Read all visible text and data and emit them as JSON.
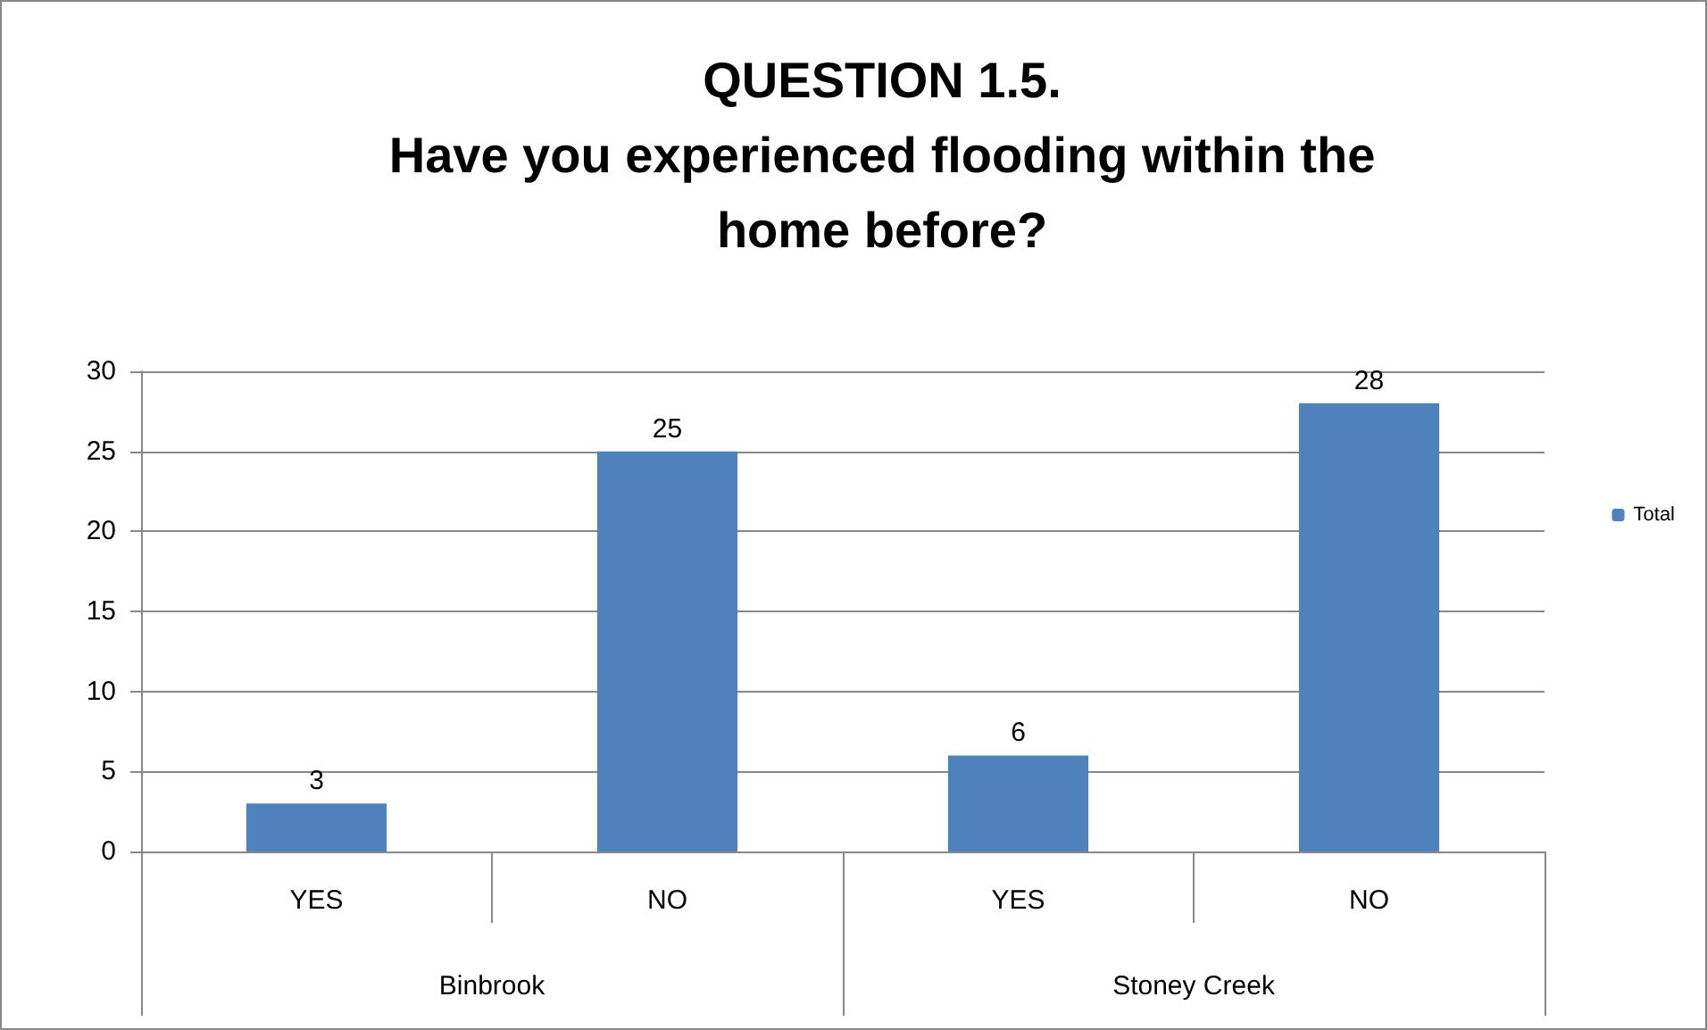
{
  "chart_data": {
    "type": "bar",
    "title": "QUESTION 1.5.\nHave you experienced flooding within the\nhome before?",
    "categories": [
      "YES",
      "NO",
      "YES",
      "NO"
    ],
    "series": [
      {
        "name": "Total",
        "color": "#4f81bd",
        "values": [
          3,
          25,
          6,
          28
        ]
      }
    ],
    "annotations": [
      "Binbrook",
      "Stoney Creek"
    ],
    "ylim": [
      0,
      30
    ],
    "yticks": [
      0,
      5,
      10,
      15,
      20,
      25,
      30
    ],
    "grid": "y",
    "legend": "right",
    "data_labels": true
  }
}
